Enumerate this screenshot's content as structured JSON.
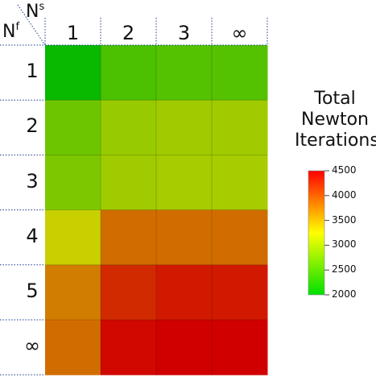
{
  "chart_data": {
    "type": "heatmap",
    "title_lines": [
      "Total",
      "Newton",
      "Iterations"
    ],
    "x_axis": {
      "base": "N",
      "sup": "s"
    },
    "y_axis": {
      "base": "N",
      "sup": "f"
    },
    "columns": [
      "1",
      "2",
      "3",
      "∞"
    ],
    "rows": [
      "1",
      "2",
      "3",
      "4",
      "5",
      "∞"
    ],
    "values": [
      [
        2050,
        2450,
        2500,
        2500
      ],
      [
        2650,
        2900,
        2950,
        2950
      ],
      [
        2750,
        2950,
        3000,
        3000
      ],
      [
        3200,
        3850,
        3850,
        3850
      ],
      [
        3750,
        4250,
        4350,
        4350
      ],
      [
        3850,
        4450,
        4500,
        4500
      ]
    ],
    "colorbar": {
      "min": 2000,
      "max": 4500,
      "ticks": [
        "4500",
        "4000",
        "3500",
        "3000",
        "2500",
        "2000"
      ],
      "colors": [
        "#00e000",
        "#ffff00",
        "#ff0000"
      ]
    }
  }
}
